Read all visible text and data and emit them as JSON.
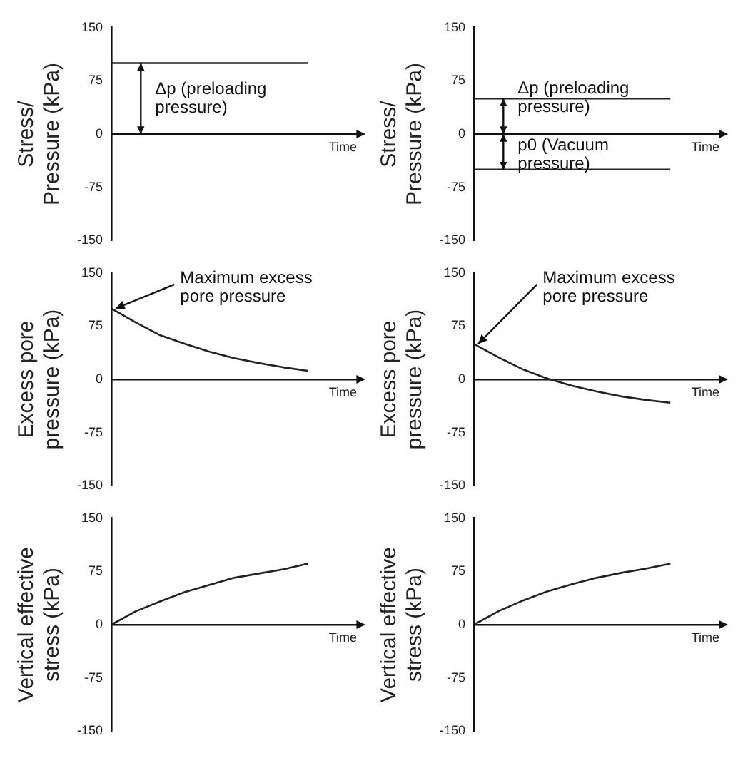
{
  "chart_data": [
    {
      "type": "line",
      "ylabel": "Stress/\nPressure (kPa)",
      "xlabel": "Time",
      "categories": [
        null,
        null,
        null,
        null,
        null,
        null,
        null,
        null,
        null,
        null,
        null
      ],
      "series": [
        {
          "color": "#222222",
          "values": [
            100,
            100,
            100,
            100,
            100,
            100,
            100,
            100,
            100,
            null,
            null
          ]
        }
      ],
      "ylim": [
        -150,
        150
      ],
      "yticks": [
        -150,
        -75,
        0,
        75,
        150
      ],
      "marker": "none",
      "annotations": [
        {
          "text": "Δp (preloading pressure)",
          "y": 100
        }
      ]
    },
    {
      "type": "line",
      "ylabel": "Stress/\nPressure (kPa)",
      "xlabel": "Time",
      "categories": [
        null,
        null,
        null,
        null,
        null,
        null,
        null,
        null,
        null,
        null,
        null
      ],
      "series": [
        {
          "color": "#222222",
          "values": [
            50,
            50,
            50,
            50,
            50,
            50,
            50,
            50,
            50,
            null,
            null
          ]
        },
        {
          "color": "#222222",
          "values": [
            -50,
            -50,
            -50,
            -50,
            -50,
            -50,
            -50,
            -50,
            -50,
            null,
            null
          ]
        }
      ],
      "ylim": [
        -150,
        150
      ],
      "yticks": [
        -150,
        -75,
        0,
        75,
        150
      ],
      "marker": "none",
      "annotations": [
        {
          "text": "Δp (preloading pressure)",
          "y": 50
        },
        {
          "text": "p0 (Vacuum pressure)",
          "y": -50
        }
      ]
    },
    {
      "type": "line",
      "ylabel": "Excess pore\npressure (kPa)",
      "xlabel": "Time",
      "categories": [
        null,
        null,
        null,
        null,
        null,
        null,
        null,
        null,
        null,
        null,
        null
      ],
      "series": [
        {
          "color": "#222222",
          "values": [
            100,
            80,
            62,
            50,
            39,
            30,
            23,
            17,
            12,
            null,
            null
          ]
        }
      ],
      "ylim": [
        -150,
        150
      ],
      "yticks": [
        -150,
        -75,
        0,
        75,
        150
      ],
      "marker": "none",
      "annotations": [
        "Maximum excess pore pressure"
      ]
    },
    {
      "type": "line",
      "ylabel": "Excess pore\npressure (kPa)",
      "xlabel": "Time",
      "categories": [
        null,
        null,
        null,
        null,
        null,
        null,
        null,
        null,
        null,
        null,
        null
      ],
      "series": [
        {
          "color": "#222222",
          "values": [
            50,
            31,
            14,
            1,
            -9,
            -17,
            -24,
            -29,
            -33,
            null,
            null
          ]
        }
      ],
      "ylim": [
        -150,
        150
      ],
      "yticks": [
        -150,
        -75,
        0,
        75,
        150
      ],
      "marker": "none",
      "annotations": [
        "Maximum excess pore pressure"
      ]
    },
    {
      "type": "line",
      "ylabel": "Vertical effective\nstress (kPa)",
      "xlabel": "Time",
      "categories": [
        null,
        null,
        null,
        null,
        null,
        null,
        null,
        null,
        null,
        null,
        null
      ],
      "series": [
        {
          "color": "#222222",
          "values": [
            0,
            19,
            33,
            46,
            56,
            66,
            72,
            78,
            86,
            null,
            null
          ]
        }
      ],
      "ylim": [
        -150,
        150
      ],
      "yticks": [
        -150,
        -75,
        0,
        75,
        150
      ],
      "marker": "none"
    },
    {
      "type": "line",
      "ylabel": "Vertical effective\nstress (kPa)",
      "xlabel": "Time",
      "categories": [
        null,
        null,
        null,
        null,
        null,
        null,
        null,
        null,
        null,
        null,
        null
      ],
      "series": [
        {
          "color": "#222222",
          "values": [
            0,
            19,
            34,
            47,
            57,
            66,
            73,
            79,
            86,
            null,
            null
          ]
        }
      ],
      "ylim": [
        -150,
        150
      ],
      "yticks": [
        -150,
        -75,
        0,
        75,
        150
      ],
      "marker": "none"
    }
  ]
}
